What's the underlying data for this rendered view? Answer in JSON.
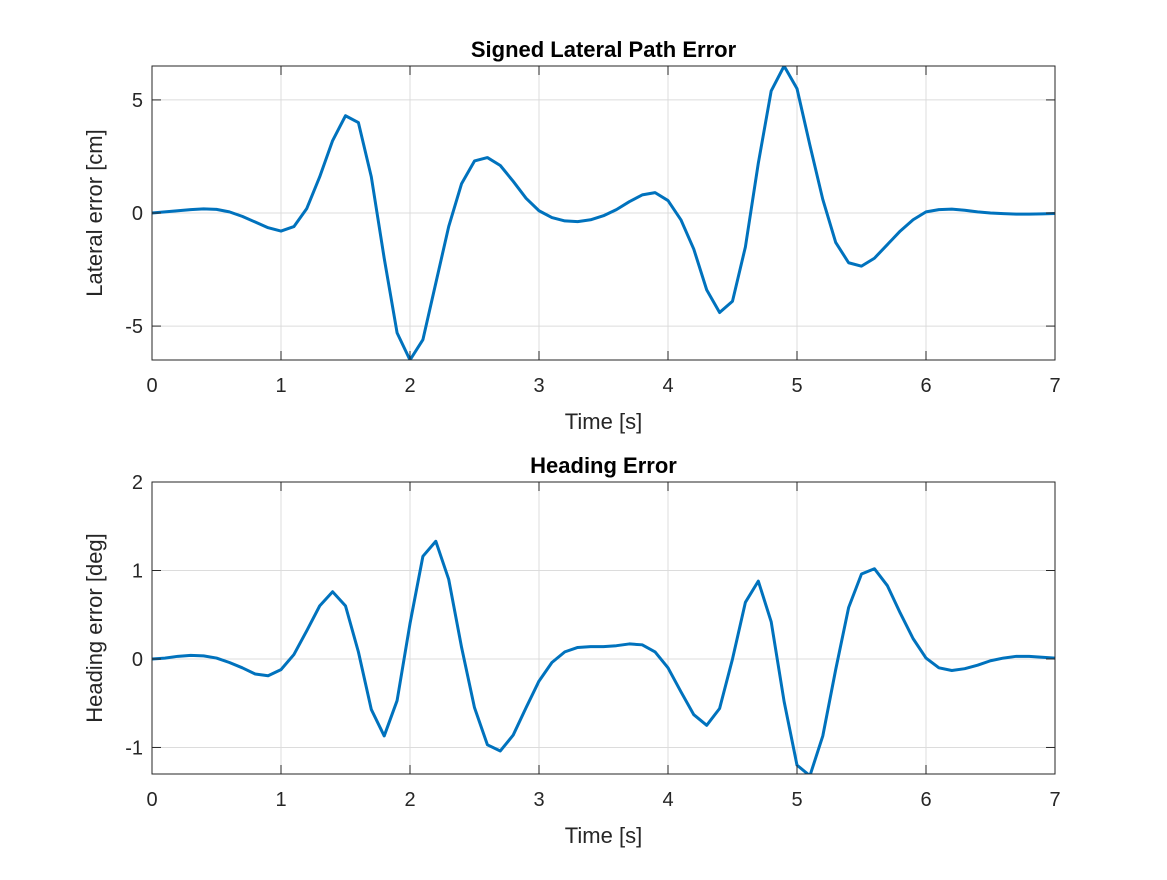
{
  "chart_data": [
    {
      "type": "line",
      "title": "Signed Lateral Path Error",
      "xlabel": "Time [s]",
      "ylabel": "Lateral error [cm]",
      "xlim": [
        0,
        7
      ],
      "ylim": [
        -6.5,
        6.5
      ],
      "xticks": [
        0,
        1,
        2,
        3,
        4,
        5,
        6,
        7
      ],
      "xtick_labels": [
        "0",
        "1",
        "2",
        "3",
        "4",
        "5",
        "6",
        "7"
      ],
      "yticks": [
        -5,
        0,
        5
      ],
      "ytick_labels": [
        "-5",
        "0",
        "5"
      ],
      "grid": true,
      "series": [
        {
          "color": "#0072BD",
          "x": [
            0,
            0.1,
            0.2,
            0.3,
            0.4,
            0.5,
            0.6,
            0.7,
            0.8,
            0.9,
            1.0,
            1.1,
            1.2,
            1.3,
            1.4,
            1.5,
            1.6,
            1.7,
            1.8,
            1.9,
            2.0,
            2.1,
            2.2,
            2.3,
            2.4,
            2.5,
            2.6,
            2.7,
            2.8,
            2.9,
            3.0,
            3.1,
            3.2,
            3.3,
            3.4,
            3.5,
            3.6,
            3.7,
            3.8,
            3.9,
            4.0,
            4.1,
            4.2,
            4.3,
            4.4,
            4.5,
            4.6,
            4.7,
            4.8,
            4.9,
            5.0,
            5.1,
            5.2,
            5.3,
            5.4,
            5.5,
            5.6,
            5.7,
            5.8,
            5.9,
            6.0,
            6.1,
            6.2,
            6.3,
            6.4,
            6.5,
            6.6,
            6.7,
            6.8,
            6.9,
            7.0
          ],
          "values": [
            0,
            0.05,
            0.1,
            0.15,
            0.18,
            0.16,
            0.05,
            -0.15,
            -0.4,
            -0.65,
            -0.8,
            -0.6,
            0.2,
            1.6,
            3.2,
            4.3,
            4.0,
            1.6,
            -2.0,
            -5.3,
            -6.5,
            -5.6,
            -3.1,
            -0.6,
            1.3,
            2.3,
            2.45,
            2.1,
            1.4,
            0.65,
            0.1,
            -0.2,
            -0.35,
            -0.38,
            -0.3,
            -0.12,
            0.15,
            0.5,
            0.8,
            0.9,
            0.55,
            -0.3,
            -1.6,
            -3.4,
            -4.4,
            -3.9,
            -1.5,
            2.2,
            5.4,
            6.5,
            5.5,
            3.0,
            0.6,
            -1.3,
            -2.2,
            -2.35,
            -2.0,
            -1.4,
            -0.8,
            -0.3,
            0.05,
            0.15,
            0.17,
            0.12,
            0.05,
            0,
            -0.03,
            -0.05,
            -0.05,
            -0.04,
            -0.02
          ]
        }
      ]
    },
    {
      "type": "line",
      "title": "Heading Error",
      "xlabel": "Time [s]",
      "ylabel": "Heading error [deg]",
      "xlim": [
        0,
        7
      ],
      "ylim": [
        -1.3,
        2
      ],
      "xticks": [
        0,
        1,
        2,
        3,
        4,
        5,
        6,
        7
      ],
      "xtick_labels": [
        "0",
        "1",
        "2",
        "3",
        "4",
        "5",
        "6",
        "7"
      ],
      "yticks": [
        -1,
        0,
        1,
        2
      ],
      "ytick_labels": [
        "-1",
        "0",
        "1",
        "2"
      ],
      "grid": true,
      "series": [
        {
          "color": "#0072BD",
          "x": [
            0,
            0.1,
            0.2,
            0.3,
            0.4,
            0.5,
            0.6,
            0.7,
            0.8,
            0.9,
            1.0,
            1.1,
            1.2,
            1.3,
            1.4,
            1.5,
            1.6,
            1.7,
            1.8,
            1.9,
            2.0,
            2.1,
            2.2,
            2.3,
            2.4,
            2.5,
            2.6,
            2.7,
            2.8,
            2.9,
            3.0,
            3.1,
            3.2,
            3.3,
            3.4,
            3.5,
            3.6,
            3.7,
            3.8,
            3.9,
            4.0,
            4.1,
            4.2,
            4.3,
            4.4,
            4.5,
            4.6,
            4.7,
            4.8,
            4.9,
            5.0,
            5.1,
            5.2,
            5.3,
            5.4,
            5.5,
            5.6,
            5.7,
            5.8,
            5.9,
            6.0,
            6.1,
            6.2,
            6.3,
            6.4,
            6.5,
            6.6,
            6.7,
            6.8,
            6.9,
            7.0
          ],
          "values": [
            0,
            0.01,
            0.03,
            0.04,
            0.035,
            0.01,
            -0.04,
            -0.1,
            -0.17,
            -0.19,
            -0.12,
            0.05,
            0.32,
            0.6,
            0.76,
            0.6,
            0.08,
            -0.57,
            -0.87,
            -0.47,
            0.4,
            1.16,
            1.33,
            0.9,
            0.13,
            -0.55,
            -0.97,
            -1.04,
            -0.86,
            -0.55,
            -0.25,
            -0.04,
            0.08,
            0.13,
            0.14,
            0.14,
            0.15,
            0.17,
            0.16,
            0.08,
            -0.1,
            -0.37,
            -0.63,
            -0.75,
            -0.56,
            0.0,
            0.64,
            0.88,
            0.42,
            -0.48,
            -1.2,
            -1.32,
            -0.87,
            -0.12,
            0.58,
            0.96,
            1.02,
            0.83,
            0.52,
            0.23,
            0.01,
            -0.1,
            -0.13,
            -0.11,
            -0.07,
            -0.02,
            0.01,
            0.03,
            0.03,
            0.02,
            0.01
          ]
        }
      ]
    }
  ]
}
